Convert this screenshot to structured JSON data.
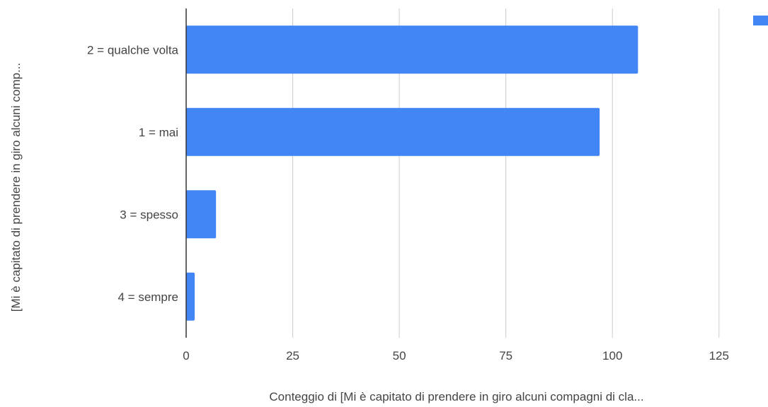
{
  "chart_data": {
    "type": "bar",
    "orientation": "horizontal",
    "title": "",
    "xlabel": "Conteggio di  [Mi è capitato di prendere in giro alcuni compagni di cla...",
    "ylabel": "[Mi è capitato di prendere in giro alcuni comp...",
    "categories": [
      "2 = qualche volta",
      "1 = mai",
      "3 = spesso",
      "4 = sempre"
    ],
    "values": [
      106,
      97,
      7,
      2
    ],
    "xlim": [
      0,
      135
    ],
    "xticks": [
      "0",
      "25",
      "50",
      "75",
      "100",
      "125"
    ],
    "grid": true,
    "legend": {
      "placement": "top-right",
      "entries": [
        ""
      ]
    },
    "colors": {
      "bar": "#4285f4",
      "grid": "#cccccc",
      "axis": "#333333"
    }
  }
}
